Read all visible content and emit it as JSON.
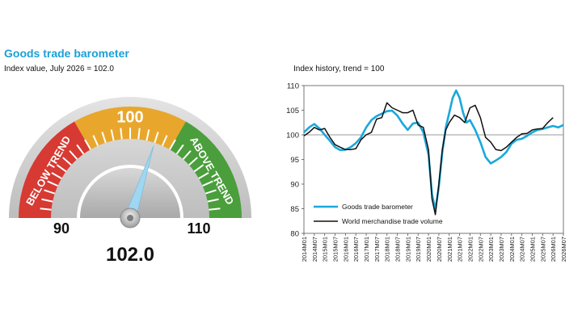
{
  "header": {
    "title": "Goods trade barometer",
    "subtitle": "Index value, July 2026 = 102.0"
  },
  "gauge": {
    "value": 102.0,
    "value_label": "102.0",
    "min": 90,
    "max": 110,
    "min_label": "90",
    "max_label": "110",
    "bands": [
      {
        "label": "BELOW TREND",
        "from": 90,
        "to": 96.67,
        "color": "#d63a33"
      },
      {
        "label": "100",
        "from": 96.67,
        "to": 103.33,
        "color": "#e8a72c"
      },
      {
        "label": "ABOVE TREND",
        "from": 103.33,
        "to": 110,
        "color": "#4a9e3b"
      }
    ],
    "colors": {
      "needle": "#9fd6f0",
      "hub": "#b9b9b9",
      "outer": "#c9c9c9"
    }
  },
  "chart_data": {
    "type": "line",
    "title": "Index history, trend = 100",
    "ylim": [
      80,
      110
    ],
    "yticks": [
      80,
      85,
      90,
      95,
      100,
      105,
      110
    ],
    "xlim": [
      "2014-01",
      "2026-07"
    ],
    "xticks": [
      "2014M01",
      "2014M07",
      "2015M01",
      "2015M07",
      "2016M01",
      "2016M07",
      "2017M01",
      "2017M07",
      "2018M01",
      "2018M07",
      "2019M01",
      "2019M07",
      "2020M01",
      "2020M07",
      "2021M01",
      "2021M07",
      "2022M01",
      "2022M07",
      "2023M01",
      "2023M07",
      "2024M01",
      "2024M07",
      "2025M01",
      "2025M07",
      "2026M01",
      "2026M07"
    ],
    "reference_line": 100,
    "legend_position": "lower-left",
    "series": [
      {
        "name": "Goods trade barometer",
        "color": "#1aa8dc",
        "points": [
          [
            "2014-01",
            100.5
          ],
          [
            "2014-04",
            101.5
          ],
          [
            "2014-07",
            102.2
          ],
          [
            "2014-10",
            101.3
          ],
          [
            "2015-01",
            100.0
          ],
          [
            "2015-04",
            98.8
          ],
          [
            "2015-07",
            97.5
          ],
          [
            "2015-10",
            96.9
          ],
          [
            "2016-01",
            97.0
          ],
          [
            "2016-04",
            97.5
          ],
          [
            "2016-07",
            98.3
          ],
          [
            "2016-10",
            99.5
          ],
          [
            "2017-01",
            101.5
          ],
          [
            "2017-04",
            103.0
          ],
          [
            "2017-07",
            103.8
          ],
          [
            "2017-10",
            104.3
          ],
          [
            "2018-01",
            104.8
          ],
          [
            "2018-04",
            104.9
          ],
          [
            "2018-07",
            103.9
          ],
          [
            "2018-10",
            102.3
          ],
          [
            "2019-01",
            101.0
          ],
          [
            "2019-04",
            102.3
          ],
          [
            "2019-07",
            102.5
          ],
          [
            "2019-10",
            100.5
          ],
          [
            "2020-01",
            96.0
          ],
          [
            "2020-03",
            88.0
          ],
          [
            "2020-05",
            84.8
          ],
          [
            "2020-07",
            89.5
          ],
          [
            "2020-09",
            96.5
          ],
          [
            "2020-11",
            101.5
          ],
          [
            "2021-01",
            104.5
          ],
          [
            "2021-03",
            107.5
          ],
          [
            "2021-05",
            109.0
          ],
          [
            "2021-07",
            107.5
          ],
          [
            "2021-09",
            104.5
          ],
          [
            "2021-11",
            102.5
          ],
          [
            "2022-01",
            103.0
          ],
          [
            "2022-04",
            101.0
          ],
          [
            "2022-07",
            98.5
          ],
          [
            "2022-10",
            95.5
          ],
          [
            "2023-01",
            94.2
          ],
          [
            "2023-04",
            94.8
          ],
          [
            "2023-07",
            95.5
          ],
          [
            "2023-10",
            96.5
          ],
          [
            "2024-01",
            98.2
          ],
          [
            "2024-04",
            99.0
          ],
          [
            "2024-07",
            99.2
          ],
          [
            "2024-10",
            99.8
          ],
          [
            "2025-01",
            100.5
          ],
          [
            "2025-04",
            101.0
          ],
          [
            "2025-07",
            101.2
          ],
          [
            "2025-10",
            101.5
          ],
          [
            "2026-01",
            101.8
          ],
          [
            "2026-04",
            101.5
          ],
          [
            "2026-07",
            102.0
          ]
        ]
      },
      {
        "name": "World merchandise trade volume",
        "color": "#111111",
        "points": [
          [
            "2014-01",
            99.8
          ],
          [
            "2014-04",
            100.5
          ],
          [
            "2014-07",
            101.5
          ],
          [
            "2014-10",
            101.0
          ],
          [
            "2015-01",
            101.3
          ],
          [
            "2015-04",
            99.5
          ],
          [
            "2015-07",
            98.0
          ],
          [
            "2015-10",
            97.5
          ],
          [
            "2016-01",
            97.0
          ],
          [
            "2016-04",
            97.0
          ],
          [
            "2016-07",
            97.2
          ],
          [
            "2016-10",
            99.0
          ],
          [
            "2017-01",
            100.0
          ],
          [
            "2017-04",
            100.5
          ],
          [
            "2017-07",
            103.2
          ],
          [
            "2017-10",
            103.5
          ],
          [
            "2018-01",
            106.5
          ],
          [
            "2018-04",
            105.5
          ],
          [
            "2018-07",
            105.0
          ],
          [
            "2018-10",
            104.5
          ],
          [
            "2019-01",
            104.5
          ],
          [
            "2019-04",
            105.0
          ],
          [
            "2019-07",
            102.0
          ],
          [
            "2019-10",
            101.5
          ],
          [
            "2020-01",
            97.0
          ],
          [
            "2020-03",
            87.0
          ],
          [
            "2020-05",
            83.8
          ],
          [
            "2020-07",
            90.0
          ],
          [
            "2020-09",
            97.0
          ],
          [
            "2020-11",
            101.0
          ],
          [
            "2021-01",
            102.5
          ],
          [
            "2021-04",
            104.0
          ],
          [
            "2021-07",
            103.5
          ],
          [
            "2021-10",
            102.5
          ],
          [
            "2022-01",
            105.5
          ],
          [
            "2022-04",
            106.0
          ],
          [
            "2022-07",
            103.5
          ],
          [
            "2022-10",
            99.5
          ],
          [
            "2023-01",
            98.5
          ],
          [
            "2023-04",
            97.0
          ],
          [
            "2023-07",
            96.8
          ],
          [
            "2023-10",
            97.5
          ],
          [
            "2024-01",
            98.5
          ],
          [
            "2024-04",
            99.5
          ],
          [
            "2024-07",
            100.2
          ],
          [
            "2024-10",
            100.3
          ],
          [
            "2025-01",
            101.0
          ],
          [
            "2025-04",
            101.2
          ],
          [
            "2025-07",
            101.3
          ],
          [
            "2025-10",
            102.5
          ],
          [
            "2026-01",
            103.5
          ]
        ]
      }
    ]
  }
}
